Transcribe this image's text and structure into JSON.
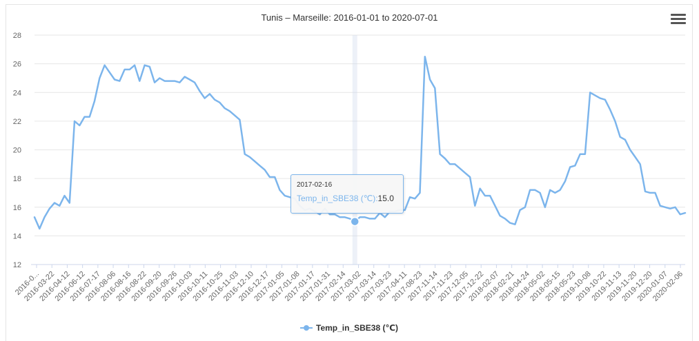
{
  "chart_data": {
    "type": "line",
    "title": "Tunis – Marseille: 2016-01-01 to 2020-07-01",
    "ylim": [
      12,
      28
    ],
    "yticks": [
      12,
      14,
      16,
      18,
      20,
      22,
      24,
      26,
      28
    ],
    "grid": true,
    "legend_position": "bottom-center",
    "x_tick_labels": [
      "2016-0...",
      "2016-03-22",
      "2016-04-12",
      "2016-06-12",
      "2016-07-17",
      "2016-08-06",
      "2016-08-16",
      "2016-08-22",
      "2016-09-20",
      "2016-09-26",
      "2016-10-03",
      "2016-10-11",
      "2016-10-25",
      "2016-11-03",
      "2016-12-10",
      "2016-12-17",
      "2017-01-05",
      "2017-01-08",
      "2017-01-17",
      "2017-01-31",
      "2017-02-14",
      "2017-03-02",
      "2017-03-14",
      "2017-03-23",
      "2017-04-11",
      "2017-08-23",
      "2017-11-14",
      "2017-11-23",
      "2017-12-05",
      "2017-12-22",
      "2018-02-07",
      "2018-02-21",
      "2018-04-24",
      "2018-05-02",
      "2018-05-15",
      "2018-05-23",
      "2019-10-08",
      "2019-10-22",
      "2019-11-13",
      "2019-11-20",
      "2019-12-20",
      "2020-01-07",
      "2020-02-06"
    ],
    "series": [
      {
        "name": "Temp_in_SBE38 (℃)",
        "color": "#7cb5ec",
        "values": [
          15.3,
          14.5,
          15.3,
          15.9,
          16.3,
          16.1,
          16.8,
          16.3,
          22.0,
          21.7,
          22.3,
          22.3,
          23.4,
          25.0,
          25.9,
          25.4,
          24.9,
          24.8,
          25.6,
          25.6,
          25.9,
          24.8,
          25.9,
          25.8,
          24.7,
          25.0,
          24.8,
          24.8,
          24.8,
          24.7,
          25.1,
          24.9,
          24.7,
          24.1,
          23.6,
          23.9,
          23.5,
          23.3,
          22.9,
          22.7,
          22.4,
          22.1,
          19.7,
          19.5,
          19.2,
          18.9,
          18.6,
          18.1,
          18.1,
          17.2,
          16.8,
          16.7,
          16.6,
          16.1,
          15.8,
          15.9,
          15.7,
          15.5,
          15.9,
          15.5,
          15.5,
          15.3,
          15.3,
          15.2,
          15.0,
          15.3,
          15.3,
          15.2,
          15.2,
          15.6,
          15.3,
          15.7,
          15.7,
          15.8,
          15.8,
          16.7,
          16.6,
          17.0,
          26.5,
          24.9,
          24.3,
          19.7,
          19.4,
          19.0,
          19.0,
          18.7,
          18.4,
          18.1,
          16.1,
          17.3,
          16.8,
          16.8,
          16.1,
          15.4,
          15.2,
          14.9,
          14.8,
          15.8,
          16.0,
          17.2,
          17.2,
          17.0,
          16.0,
          17.2,
          17.0,
          17.2,
          17.8,
          18.8,
          18.9,
          19.7,
          19.7,
          24.0,
          23.8,
          23.6,
          23.5,
          22.8,
          22.0,
          20.9,
          20.7,
          20.0,
          19.5,
          19.0,
          17.1,
          17.0,
          17.0,
          16.1,
          16.0,
          15.9,
          16.0,
          15.5,
          15.6
        ]
      }
    ],
    "tooltip": {
      "date": "2017-02-16",
      "series": "Temp_in_SBE38 (℃):",
      "value": "15.0",
      "index": 64
    }
  }
}
